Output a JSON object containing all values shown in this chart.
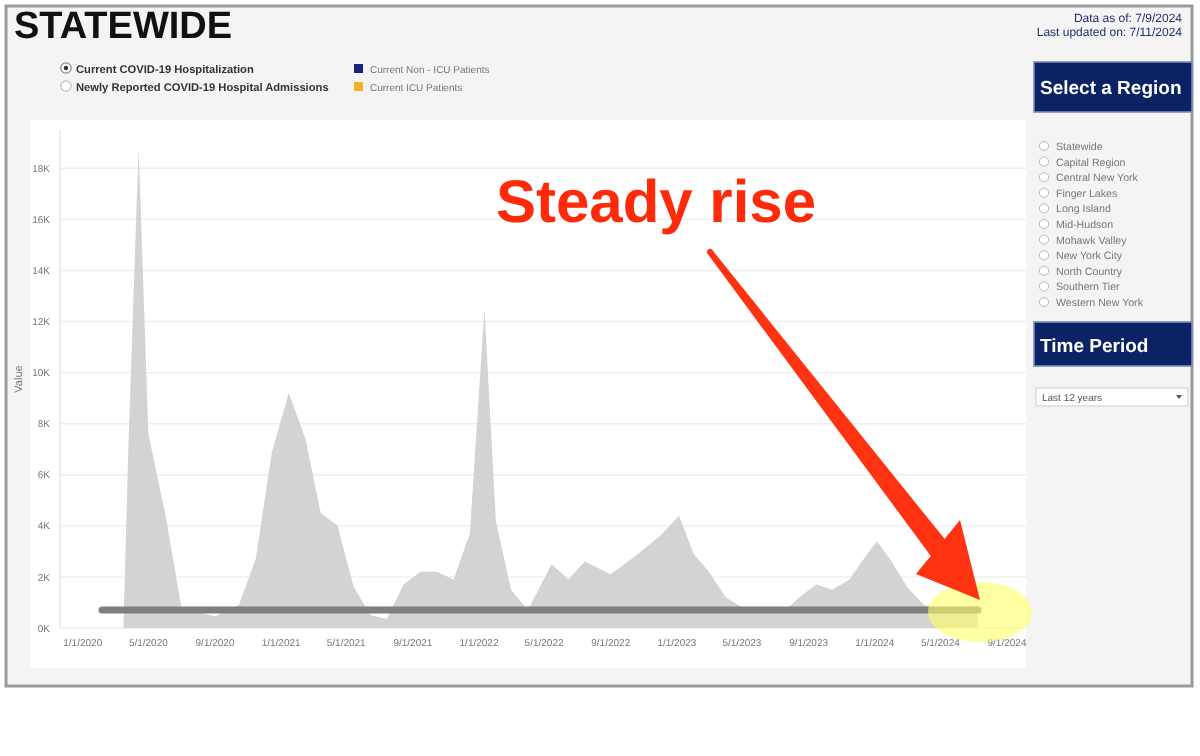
{
  "chart_data": {
    "type": "area",
    "title": "STATEWIDE",
    "ylabel": "Value",
    "x": [
      "2020-03-16",
      "2020-03-25",
      "2020-04-13",
      "2020-05-01",
      "2020-06-01",
      "2020-07-01",
      "2020-09-01",
      "2020-10-15",
      "2020-11-15",
      "2020-12-15",
      "2021-01-15",
      "2021-02-15",
      "2021-03-15",
      "2021-04-15",
      "2021-05-15",
      "2021-06-15",
      "2021-07-15",
      "2021-08-15",
      "2021-09-15",
      "2021-10-15",
      "2021-11-15",
      "2021-12-15",
      "2022-01-11",
      "2022-02-01",
      "2022-03-01",
      "2022-04-01",
      "2022-05-15",
      "2022-06-15",
      "2022-07-15",
      "2022-09-01",
      "2022-10-15",
      "2022-12-01",
      "2023-01-05",
      "2023-02-01",
      "2023-03-01",
      "2023-04-01",
      "2023-05-01",
      "2023-06-15",
      "2023-07-15",
      "2023-08-15",
      "2023-09-15",
      "2023-10-15",
      "2023-11-15",
      "2023-12-15",
      "2024-01-05",
      "2024-02-01",
      "2024-03-01",
      "2024-04-01",
      "2024-05-15",
      "2024-07-09"
    ],
    "series": [
      {
        "color": "#d3d3d3",
        "values": [
          0,
          7000,
          18800,
          7600,
          4500,
          800,
          450,
          900,
          2700,
          6900,
          9200,
          7400,
          4500,
          4000,
          1600,
          500,
          350,
          1700,
          2200,
          2200,
          1900,
          3700,
          12500,
          4200,
          1500,
          700,
          2500,
          1900,
          2600,
          2100,
          2800,
          3600,
          4400,
          2900,
          2200,
          1200,
          800,
          600,
          600,
          1200,
          1700,
          1500,
          1900,
          2800,
          3400,
          2600,
          1600,
          900,
          600,
          900
        ]
      }
    ],
    "xlim": [
      "2019-11-20",
      "2024-10-06"
    ],
    "xticks": [
      {
        "value": "2020-01-01",
        "label": "1/1/2020"
      },
      {
        "value": "2020-05-01",
        "label": "5/1/2020"
      },
      {
        "value": "2020-09-01",
        "label": "9/1/2020"
      },
      {
        "value": "2021-01-01",
        "label": "1/1/2021"
      },
      {
        "value": "2021-05-01",
        "label": "5/1/2021"
      },
      {
        "value": "2021-09-01",
        "label": "9/1/2021"
      },
      {
        "value": "2022-01-01",
        "label": "1/1/2022"
      },
      {
        "value": "2022-05-01",
        "label": "5/1/2022"
      },
      {
        "value": "2022-09-01",
        "label": "9/1/2022"
      },
      {
        "value": "2023-01-01",
        "label": "1/1/2023"
      },
      {
        "value": "2023-05-01",
        "label": "5/1/2023"
      },
      {
        "value": "2023-09-01",
        "label": "9/1/2023"
      },
      {
        "value": "2024-01-01",
        "label": "1/1/2024"
      },
      {
        "value": "2024-05-01",
        "label": "5/1/2024"
      },
      {
        "value": "2024-09-01",
        "label": "9/1/2024"
      }
    ],
    "ylim": [
      0,
      19500
    ],
    "yticks": [
      {
        "value": 0,
        "label": "0K"
      },
      {
        "value": 2000,
        "label": "2K"
      },
      {
        "value": 4000,
        "label": "4K"
      },
      {
        "value": 6000,
        "label": "6K"
      },
      {
        "value": 8000,
        "label": "8K"
      },
      {
        "value": 10000,
        "label": "10K"
      },
      {
        "value": 12000,
        "label": "12K"
      },
      {
        "value": 14000,
        "label": "14K"
      },
      {
        "value": 16000,
        "label": "16K"
      },
      {
        "value": 18000,
        "label": "18K"
      }
    ],
    "grid": "y",
    "ref_lines": [
      {
        "axis": "y",
        "value": 700,
        "color": "#7f7f7f"
      }
    ],
    "annotations": [
      "Steady rise",
      "Data as of: 7/9/2024",
      "Last updated on: 7/11/2024",
      "Current COVID-19 Hospitalization",
      "Newly Reported COVID-19 Hospital Admissions",
      "Current Non - ICU Patients",
      "Current ICU Patients",
      "Select a Region",
      "Statewide",
      "Capital Region",
      "Central New York",
      "Finger Lakes",
      "Long Island",
      "Mid-Hudson",
      "Mohawk Valley",
      "New York City",
      "North Country",
      "Southern Tier",
      "Western New York",
      "Time Period",
      "Last 12 years"
    ]
  }
}
